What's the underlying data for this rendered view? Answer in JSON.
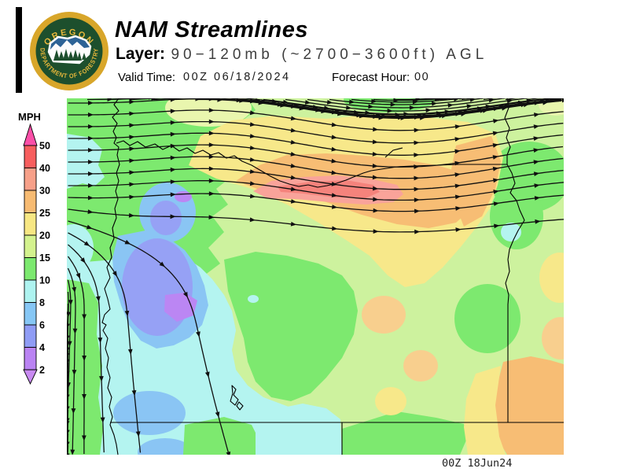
{
  "header": {
    "title": "NAM Streamlines",
    "layer_label": "Layer:",
    "layer_value": "90−120mb (~2700−3600ft) AGL",
    "valid_time_label": "Valid Time:",
    "valid_time_value": "00Z 06/18/2024",
    "forecast_hour_label": "Forecast Hour:",
    "forecast_hour_value": "00",
    "logo_top_text": "OREGON",
    "logo_arc_text": "DEPARTMENT OF FORESTRY"
  },
  "legend": {
    "units_label": "MPH",
    "ticks": [
      "50",
      "40",
      "30",
      "25",
      "20",
      "15",
      "10",
      "8",
      "6",
      "4",
      "2"
    ],
    "arrow_above_color": "#fb4fa8",
    "bin_colors": [
      "#f75e5e",
      "#f7a089",
      "#f7bb72",
      "#f7e783",
      "#d4f28e",
      "#7ce96f",
      "#aef3f0",
      "#86c7f5",
      "#8f9cf5",
      "#ba83f3"
    ],
    "arrow_below_color": "#c98bf2"
  },
  "map": {
    "region": "Oregon and vicinity",
    "timestamp": "00Z 18Jun24",
    "palette": {
      "base": "#cdf29e",
      "green": "#7de96f",
      "pale": "#e9f6ae",
      "cyan": "#b4f4f0",
      "blue": "#8ac5f4",
      "indigo": "#96a1f5",
      "purple": "#bb86f3",
      "yellow": "#f7e88a",
      "paleorange": "#f8cf8e",
      "orange": "#f7bd74",
      "pink": "#f9a39a",
      "red": "#f5837c"
    }
  },
  "chart_data": {
    "type": "streamline_map",
    "title": "NAM Streamlines",
    "layer": "90−120mb (~2700−3600ft) AGL",
    "valid_time": "00Z 06/18/2024",
    "forecast_hour": "00",
    "units": "MPH",
    "legend_levels_mph": [
      2,
      4,
      6,
      8,
      10,
      15,
      20,
      25,
      30,
      40,
      50
    ],
    "flow_summary": "Westerly flow across northern Oregon turning southerly along the southwest coast and southeasterly over southeast Oregon",
    "speed_maxima": [
      {
        "area": "Columbia River corridor, north-central Oregon",
        "speed_mph": "30-40"
      },
      {
        "area": "southwest Oregon interior",
        "speed_mph": "2-8"
      }
    ]
  }
}
